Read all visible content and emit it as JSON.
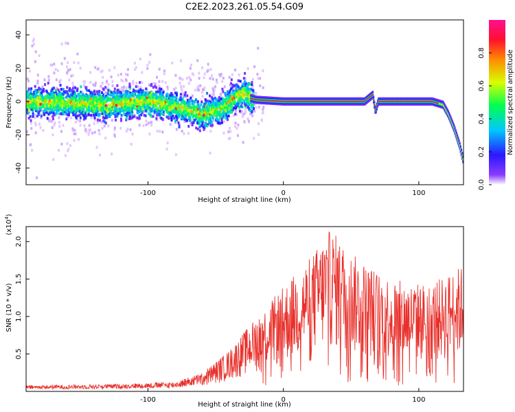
{
  "title": "C2E2.2023.261.05.54.G09",
  "chart_data": [
    {
      "type": "heatmap",
      "xlabel": "Height of straight line (km)",
      "ylabel": "Frequency (Hz)",
      "xlim": [
        -190,
        133
      ],
      "ylim": [
        -50,
        49
      ],
      "x_ticks": [
        -100,
        0,
        100
      ],
      "y_ticks": [
        -40,
        -20,
        0,
        20,
        40
      ],
      "colorbar": {
        "label": "Normalized spectral amplitude",
        "range": [
          0,
          1
        ],
        "ticks": [
          0.0,
          0.2,
          0.4,
          0.6,
          0.8
        ],
        "tick_labels": [
          "0.0",
          "0.2",
          "0.4",
          "0.6",
          "0.8"
        ]
      },
      "ridge": {
        "x": [
          -190,
          -160,
          -130,
          -100,
          -75,
          -60,
          -45,
          -35,
          -28,
          -24,
          -20,
          0,
          20,
          40,
          60,
          66,
          68,
          70,
          80,
          100,
          110,
          118,
          122,
          126,
          130,
          133
        ],
        "y": [
          0,
          -1,
          -2,
          0,
          -4,
          -8,
          -4,
          3,
          5,
          2,
          1,
          0,
          0,
          0,
          0,
          4,
          -6,
          0,
          0,
          0,
          0,
          -2,
          -8,
          -16,
          -26,
          -36
        ]
      }
    },
    {
      "type": "line",
      "xlabel": "Height of straight line (km)",
      "ylabel": "SNR (10 * v/v)",
      "y_multiplier": "(x10",
      "y_multiplier_exp": "4",
      "y_multiplier_close": ")",
      "xlim": [
        -190,
        133
      ],
      "ylim": [
        0,
        2.2
      ],
      "x_ticks": [
        -100,
        0,
        100
      ],
      "y_ticks": [
        0.5,
        1.0,
        1.5,
        2.0
      ],
      "y_tick_labels": [
        "0.5",
        "1.0",
        "1.5",
        "2.0"
      ],
      "line_color": "#e8302b",
      "envelope": {
        "x": [
          -190,
          -120,
          -80,
          -60,
          -40,
          -20,
          0,
          20,
          35,
          50,
          70,
          90,
          110,
          120,
          133
        ],
        "y": [
          0.08,
          0.1,
          0.13,
          0.25,
          0.55,
          1.0,
          1.4,
          1.8,
          2.18,
          1.85,
          1.6,
          1.45,
          1.45,
          1.55,
          1.7
        ]
      }
    }
  ]
}
